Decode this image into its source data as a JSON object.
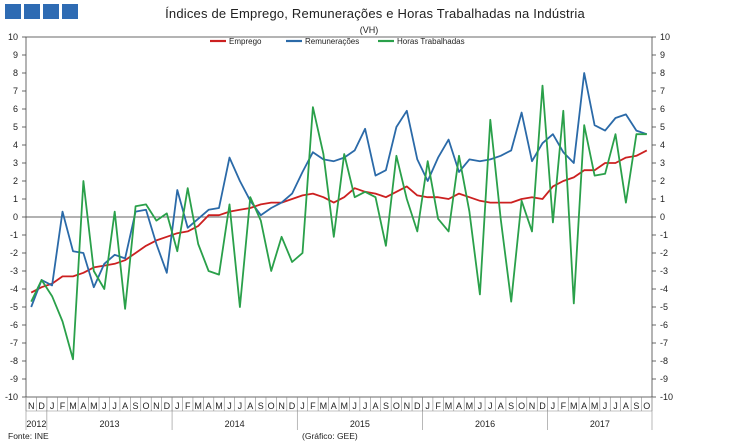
{
  "header": {
    "title": "Índices de Emprego, Remunerações e Horas Trabalhadas na Indústria",
    "unit": "(VH)"
  },
  "footer": {
    "source": "Fonte: INE",
    "credit": "(Gráfico: GEE)"
  },
  "colors": {
    "logo": "#2e6bb3",
    "emprego": "#cc2020",
    "remuneracoes": "#2b6aa8",
    "horas": "#2aa04a"
  },
  "chart_data": {
    "type": "line",
    "title": "Índices de Emprego, Remunerações e Horas Trabalhadas na Indústria",
    "ylabel": "(VH)",
    "ylim": [
      -10,
      10
    ],
    "yticks": [
      "10",
      "9",
      "8",
      "7",
      "6",
      "5",
      "4",
      "3",
      "2",
      "1",
      "0",
      "-1",
      "-2",
      "-3",
      "-4",
      "-5",
      "-6",
      "-7",
      "-8",
      "-9",
      "-10"
    ],
    "grid": false,
    "legend_position": "top-center",
    "x": [
      "2012-11",
      "2012-12",
      "2013-01",
      "2013-02",
      "2013-03",
      "2013-04",
      "2013-05",
      "2013-06",
      "2013-07",
      "2013-08",
      "2013-09",
      "2013-10",
      "2013-11",
      "2013-12",
      "2014-01",
      "2014-02",
      "2014-03",
      "2014-04",
      "2014-05",
      "2014-06",
      "2014-07",
      "2014-08",
      "2014-09",
      "2014-10",
      "2014-11",
      "2014-12",
      "2015-01",
      "2015-02",
      "2015-03",
      "2015-04",
      "2015-05",
      "2015-06",
      "2015-07",
      "2015-08",
      "2015-09",
      "2015-10",
      "2015-11",
      "2015-12",
      "2016-01",
      "2016-02",
      "2016-03",
      "2016-04",
      "2016-05",
      "2016-06",
      "2016-07",
      "2016-08",
      "2016-09",
      "2016-10",
      "2016-11",
      "2016-12",
      "2017-01",
      "2017-02",
      "2017-03",
      "2017-04",
      "2017-05",
      "2017-06",
      "2017-07",
      "2017-08",
      "2017-09",
      "2017-10"
    ],
    "month_labels": [
      "N",
      "D",
      "J",
      "F",
      "M",
      "A",
      "M",
      "J",
      "J",
      "A",
      "S",
      "O",
      "N",
      "D",
      "J",
      "F",
      "M",
      "A",
      "M",
      "J",
      "J",
      "A",
      "S",
      "O",
      "N",
      "D",
      "J",
      "F",
      "M",
      "A",
      "M",
      "J",
      "J",
      "A",
      "S",
      "O",
      "N",
      "D",
      "J",
      "F",
      "M",
      "A",
      "M",
      "J",
      "J",
      "A",
      "S",
      "O",
      "N",
      "D",
      "J",
      "F",
      "M",
      "A",
      "M",
      "J",
      "J",
      "A",
      "S",
      "O"
    ],
    "year_labels": [
      {
        "label": "2012",
        "start": 0,
        "end": 1
      },
      {
        "label": "2013",
        "start": 2,
        "end": 13
      },
      {
        "label": "2014",
        "start": 14,
        "end": 25
      },
      {
        "label": "2015",
        "start": 26,
        "end": 37
      },
      {
        "label": "2016",
        "start": 38,
        "end": 49
      },
      {
        "label": "2017",
        "start": 50,
        "end": 59
      }
    ],
    "series": [
      {
        "name": "Emprego",
        "color": "#cc2020",
        "values": [
          -4.2,
          -3.9,
          -3.7,
          -3.3,
          -3.3,
          -3.1,
          -2.8,
          -2.7,
          -2.6,
          -2.4,
          -2.0,
          -1.6,
          -1.3,
          -1.1,
          -0.9,
          -0.8,
          -0.5,
          0.1,
          0.1,
          0.3,
          0.4,
          0.5,
          0.7,
          0.8,
          0.8,
          1.0,
          1.2,
          1.3,
          1.1,
          0.8,
          1.1,
          1.6,
          1.4,
          1.3,
          1.1,
          1.4,
          1.7,
          1.2,
          1.1,
          1.1,
          1.0,
          1.3,
          1.1,
          0.9,
          0.8,
          0.8,
          0.8,
          1.0,
          1.1,
          1.0,
          1.7,
          2.0,
          2.2,
          2.6,
          2.6,
          3.0,
          3.0,
          3.3,
          3.4,
          3.7
        ]
      },
      {
        "name": "Remunerações",
        "color": "#2b6aa8",
        "values": [
          -5.0,
          -3.5,
          -3.8,
          0.3,
          -1.9,
          -2.0,
          -3.9,
          -2.6,
          -2.1,
          -2.3,
          0.3,
          0.4,
          -1.5,
          -3.1,
          1.5,
          -0.6,
          -0.1,
          0.4,
          0.5,
          3.3,
          2.0,
          0.9,
          0.1,
          0.5,
          0.8,
          1.3,
          2.5,
          3.6,
          3.2,
          3.1,
          3.3,
          3.7,
          4.9,
          2.3,
          2.6,
          5.0,
          5.9,
          3.2,
          2.0,
          3.3,
          4.3,
          2.5,
          3.2,
          3.1,
          3.2,
          3.4,
          3.7,
          5.8,
          3.1,
          4.1,
          4.6,
          3.6,
          3.0,
          8.0,
          5.1,
          4.8,
          5.5,
          5.7,
          4.8,
          4.6
        ]
      },
      {
        "name": "Horas Trabalhadas",
        "color": "#2aa04a",
        "values": [
          -4.7,
          -3.5,
          -4.4,
          -5.8,
          -7.9,
          2.0,
          -3.0,
          -4.0,
          0.3,
          -5.1,
          0.6,
          0.7,
          -0.2,
          0.2,
          -1.9,
          1.6,
          -1.5,
          -3.0,
          -3.2,
          0.7,
          -5.0,
          1.1,
          -0.2,
          -3.0,
          -1.1,
          -2.5,
          -2.0,
          6.1,
          3.5,
          -1.1,
          3.5,
          1.1,
          1.4,
          1.1,
          -1.6,
          3.4,
          1.0,
          -0.8,
          3.1,
          -0.1,
          -0.8,
          3.4,
          0.3,
          -4.3,
          5.4,
          -0.1,
          -4.7,
          0.9,
          -0.8,
          7.3,
          -0.3,
          5.9,
          -4.8,
          5.1,
          2.3,
          2.4,
          4.6,
          0.8,
          4.6,
          4.6
        ]
      }
    ]
  }
}
